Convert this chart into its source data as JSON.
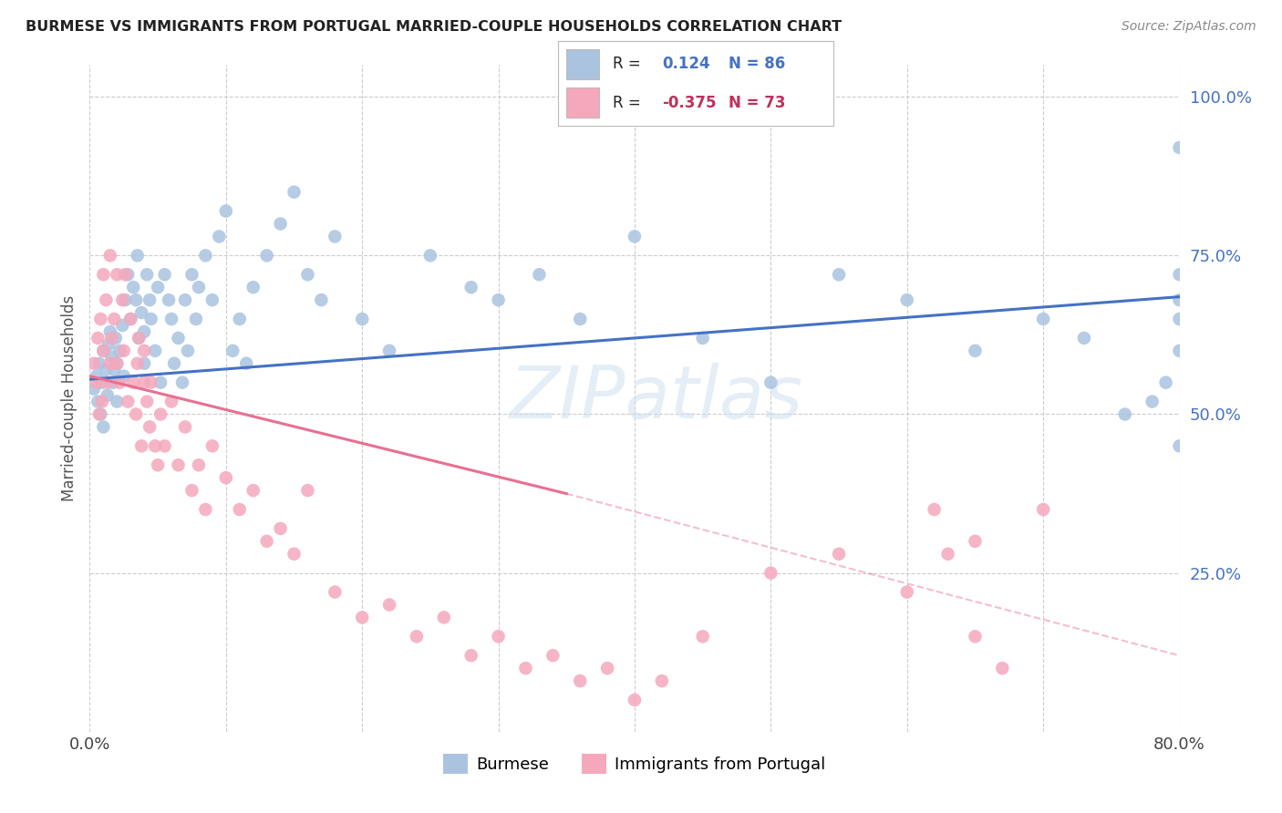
{
  "title": "BURMESE VS IMMIGRANTS FROM PORTUGAL MARRIED-COUPLE HOUSEHOLDS CORRELATION CHART",
  "source": "Source: ZipAtlas.com",
  "ylabel": "Married-couple Households",
  "ytick_labels": [
    "",
    "25.0%",
    "50.0%",
    "75.0%",
    "100.0%"
  ],
  "ytick_values": [
    0.0,
    0.25,
    0.5,
    0.75,
    1.0
  ],
  "xlim": [
    0.0,
    0.8
  ],
  "ylim": [
    0.0,
    1.05
  ],
  "burmese_R": 0.124,
  "burmese_N": 86,
  "portugal_R": -0.375,
  "portugal_N": 73,
  "burmese_color": "#aac4e0",
  "portugal_color": "#f5a8bc",
  "burmese_line_color": "#4472c4",
  "portugal_line_color": "#e87090",
  "legend_label_burmese": "Burmese",
  "legend_label_portugal": "Immigrants from Portugal",
  "watermark": "ZIPatlas",
  "burmese_trend_x0": 0.0,
  "burmese_trend_y0": 0.555,
  "burmese_trend_x1": 0.8,
  "burmese_trend_y1": 0.685,
  "portugal_trend_x0": 0.0,
  "portugal_trend_y0": 0.56,
  "portugal_trend_x1_solid": 0.35,
  "portugal_trend_y1_solid": 0.375,
  "portugal_trend_x1_dash": 0.8,
  "portugal_trend_y1_dash": 0.12,
  "burmese_scatter_x": [
    0.003,
    0.005,
    0.006,
    0.007,
    0.008,
    0.009,
    0.01,
    0.01,
    0.012,
    0.013,
    0.014,
    0.015,
    0.016,
    0.017,
    0.018,
    0.019,
    0.02,
    0.02,
    0.022,
    0.024,
    0.025,
    0.026,
    0.028,
    0.03,
    0.032,
    0.034,
    0.035,
    0.036,
    0.038,
    0.04,
    0.04,
    0.042,
    0.044,
    0.045,
    0.048,
    0.05,
    0.052,
    0.055,
    0.058,
    0.06,
    0.062,
    0.065,
    0.068,
    0.07,
    0.072,
    0.075,
    0.078,
    0.08,
    0.085,
    0.09,
    0.095,
    0.1,
    0.105,
    0.11,
    0.115,
    0.12,
    0.13,
    0.14,
    0.15,
    0.16,
    0.17,
    0.18,
    0.2,
    0.22,
    0.25,
    0.28,
    0.3,
    0.33,
    0.36,
    0.4,
    0.45,
    0.5,
    0.55,
    0.6,
    0.65,
    0.7,
    0.73,
    0.76,
    0.78,
    0.79,
    0.8,
    0.8,
    0.8,
    0.8,
    0.8,
    0.8
  ],
  "burmese_scatter_y": [
    0.54,
    0.56,
    0.52,
    0.58,
    0.5,
    0.55,
    0.6,
    0.48,
    0.57,
    0.53,
    0.61,
    0.63,
    0.59,
    0.55,
    0.57,
    0.62,
    0.58,
    0.52,
    0.6,
    0.64,
    0.56,
    0.68,
    0.72,
    0.65,
    0.7,
    0.68,
    0.75,
    0.62,
    0.66,
    0.63,
    0.58,
    0.72,
    0.68,
    0.65,
    0.6,
    0.7,
    0.55,
    0.72,
    0.68,
    0.65,
    0.58,
    0.62,
    0.55,
    0.68,
    0.6,
    0.72,
    0.65,
    0.7,
    0.75,
    0.68,
    0.78,
    0.82,
    0.6,
    0.65,
    0.58,
    0.7,
    0.75,
    0.8,
    0.85,
    0.72,
    0.68,
    0.78,
    0.65,
    0.6,
    0.75,
    0.7,
    0.68,
    0.72,
    0.65,
    0.78,
    0.62,
    0.55,
    0.72,
    0.68,
    0.6,
    0.65,
    0.62,
    0.5,
    0.52,
    0.55,
    0.92,
    0.68,
    0.72,
    0.65,
    0.6,
    0.45
  ],
  "portugal_scatter_x": [
    0.003,
    0.005,
    0.006,
    0.007,
    0.008,
    0.009,
    0.01,
    0.01,
    0.012,
    0.013,
    0.015,
    0.015,
    0.016,
    0.018,
    0.02,
    0.02,
    0.022,
    0.024,
    0.025,
    0.026,
    0.028,
    0.03,
    0.032,
    0.034,
    0.035,
    0.036,
    0.038,
    0.04,
    0.04,
    0.042,
    0.044,
    0.045,
    0.048,
    0.05,
    0.052,
    0.055,
    0.06,
    0.065,
    0.07,
    0.075,
    0.08,
    0.085,
    0.09,
    0.1,
    0.11,
    0.12,
    0.13,
    0.14,
    0.15,
    0.16,
    0.18,
    0.2,
    0.22,
    0.24,
    0.26,
    0.28,
    0.3,
    0.32,
    0.34,
    0.36,
    0.38,
    0.4,
    0.42,
    0.45,
    0.5,
    0.55,
    0.6,
    0.62,
    0.63,
    0.65,
    0.65,
    0.67,
    0.7
  ],
  "portugal_scatter_y": [
    0.58,
    0.55,
    0.62,
    0.5,
    0.65,
    0.52,
    0.6,
    0.72,
    0.68,
    0.55,
    0.58,
    0.75,
    0.62,
    0.65,
    0.58,
    0.72,
    0.55,
    0.68,
    0.6,
    0.72,
    0.52,
    0.65,
    0.55,
    0.5,
    0.58,
    0.62,
    0.45,
    0.55,
    0.6,
    0.52,
    0.48,
    0.55,
    0.45,
    0.42,
    0.5,
    0.45,
    0.52,
    0.42,
    0.48,
    0.38,
    0.42,
    0.35,
    0.45,
    0.4,
    0.35,
    0.38,
    0.3,
    0.32,
    0.28,
    0.38,
    0.22,
    0.18,
    0.2,
    0.15,
    0.18,
    0.12,
    0.15,
    0.1,
    0.12,
    0.08,
    0.1,
    0.05,
    0.08,
    0.15,
    0.25,
    0.28,
    0.22,
    0.35,
    0.28,
    0.3,
    0.15,
    0.1,
    0.35
  ]
}
